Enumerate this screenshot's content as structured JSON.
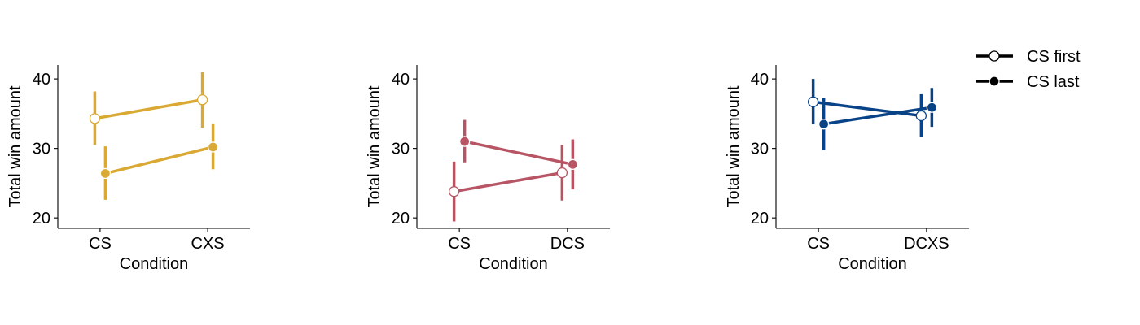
{
  "legend": {
    "placement": "top-right",
    "entries": [
      {
        "label": "CS first",
        "marker": "open-circle"
      },
      {
        "label": "CS last",
        "marker": "filled-circle"
      }
    ]
  },
  "chart_data": [
    {
      "type": "line",
      "color": "#daa933",
      "xlabel": "Condition",
      "ylabel": "Total win amount",
      "ylim": [
        18.5,
        42
      ],
      "yticks": [
        20,
        30,
        40
      ],
      "categories": [
        "CS",
        "CXS"
      ],
      "series": [
        {
          "name": "CS first",
          "marker": "open",
          "values": [
            34.3,
            37.0
          ],
          "ci_low": [
            30.5,
            33.0
          ],
          "ci_high": [
            38.2,
            41.0
          ]
        },
        {
          "name": "CS last",
          "marker": "filled",
          "values": [
            26.4,
            30.2
          ],
          "ci_low": [
            22.6,
            27.0
          ],
          "ci_high": [
            30.3,
            33.6
          ]
        }
      ]
    },
    {
      "type": "line",
      "color": "#b85565",
      "xlabel": "Condition",
      "ylabel": "Total win amount",
      "ylim": [
        18.5,
        42
      ],
      "yticks": [
        20,
        30,
        40
      ],
      "categories": [
        "CS",
        "DCS"
      ],
      "series": [
        {
          "name": "CS first",
          "marker": "open",
          "values": [
            23.8,
            26.5
          ],
          "ci_low": [
            19.5,
            22.5
          ],
          "ci_high": [
            28.1,
            30.5
          ]
        },
        {
          "name": "CS last",
          "marker": "filled",
          "values": [
            31.0,
            27.7
          ],
          "ci_low": [
            28.0,
            24.1
          ],
          "ci_high": [
            34.1,
            31.3
          ]
        }
      ]
    },
    {
      "type": "line",
      "color": "#084387",
      "xlabel": "Condition",
      "ylabel": "Total win amount",
      "ylim": [
        18.5,
        42
      ],
      "yticks": [
        20,
        30,
        40
      ],
      "categories": [
        "CS",
        "DCXS"
      ],
      "series": [
        {
          "name": "CS first",
          "marker": "open",
          "values": [
            36.7,
            34.7
          ],
          "ci_low": [
            33.5,
            31.7
          ],
          "ci_high": [
            40.0,
            37.8
          ]
        },
        {
          "name": "CS last",
          "marker": "filled",
          "values": [
            33.5,
            35.9
          ],
          "ci_low": [
            29.8,
            33.1
          ],
          "ci_high": [
            37.3,
            38.7
          ]
        }
      ]
    }
  ]
}
